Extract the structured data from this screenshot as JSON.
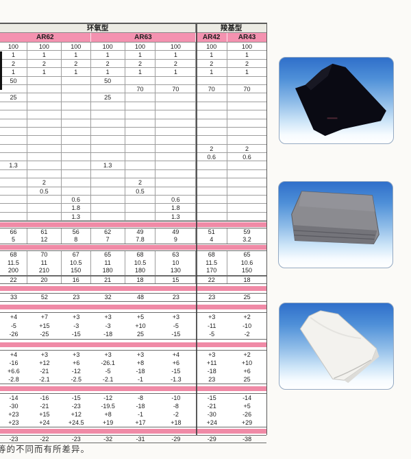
{
  "accent": {
    "pink_header": "#f492b0",
    "pink_band": "#f08aa6",
    "header_grey": "#ecebe4",
    "photo_blue_top": "#2f6fca"
  },
  "table": {
    "type_headers": [
      "环氧型",
      "羧基型"
    ],
    "grade_headers": [
      "AR62",
      "AR63",
      "AR42",
      "AR43"
    ],
    "sections": [
      {
        "rows": [
          [
            "100",
            "100",
            "100",
            "100",
            "100",
            "100",
            "100",
            "100"
          ],
          [
            "1",
            "1",
            "1",
            "1",
            "1",
            "1",
            "1",
            "1"
          ],
          [
            "2",
            "2",
            "2",
            "2",
            "2",
            "2",
            "2",
            "2"
          ],
          [
            "1",
            "1",
            "1",
            "1",
            "1",
            "1",
            "1",
            "1"
          ],
          [
            "50",
            "",
            "",
            "50",
            "",
            "",
            "",
            ""
          ],
          [
            "",
            "",
            "",
            "",
            "70",
            "70",
            "70",
            "70"
          ],
          [
            "25",
            "",
            "",
            "25",
            "",
            "",
            "",
            ""
          ],
          [
            "",
            "",
            "",
            "",
            "",
            "",
            "",
            ""
          ],
          [
            "",
            "",
            "",
            "",
            "",
            "",
            "",
            ""
          ],
          [
            "",
            "",
            "",
            "",
            "",
            "",
            "",
            ""
          ],
          [
            "",
            "",
            "",
            "",
            "",
            "",
            "",
            ""
          ],
          [
            "",
            "",
            "",
            "",
            "",
            "",
            "",
            ""
          ],
          [
            "",
            "",
            "",
            "",
            "",
            "",
            "2",
            "2"
          ],
          [
            "",
            "",
            "",
            "",
            "",
            "",
            "0.6",
            "0.6"
          ],
          [
            "1.3",
            "",
            "",
            "1.3",
            "",
            "",
            "",
            ""
          ],
          [
            "",
            "",
            "",
            "",
            "",
            "",
            "",
            ""
          ],
          [
            "",
            "2",
            "",
            "",
            "2",
            "",
            "",
            ""
          ],
          [
            "",
            "0.5",
            "",
            "",
            "0.5",
            "",
            "",
            ""
          ],
          [
            "",
            "",
            "0.6",
            "",
            "",
            "0.6",
            "",
            ""
          ],
          [
            "",
            "",
            "1.8",
            "",
            "",
            "1.8",
            "",
            ""
          ],
          [
            "",
            "",
            "1.3",
            "",
            "",
            "1.3",
            "",
            ""
          ]
        ]
      },
      {
        "rows": [
          [
            "66",
            "61",
            "56",
            "62",
            "49",
            "49",
            "51",
            "59"
          ],
          [
            "5",
            "12",
            "8",
            "7",
            "7.8",
            "9",
            "4",
            "3.2"
          ]
        ]
      },
      {
        "rows": [
          [
            "68",
            "70",
            "67",
            "65",
            "68",
            "63",
            "68",
            "65"
          ],
          [
            "11.5",
            "11",
            "10.5",
            "11",
            "10.5",
            "10",
            "11.5",
            "10.6"
          ],
          [
            "200",
            "210",
            "150",
            "180",
            "180",
            "130",
            "170",
            "150"
          ]
        ]
      },
      {
        "rows": [
          [
            "22",
            "20",
            "16",
            "21",
            "18",
            "15",
            "22",
            "18"
          ]
        ]
      },
      {
        "rows": [
          [
            "33",
            "52",
            "23",
            "32",
            "48",
            "23",
            "23",
            "25"
          ]
        ]
      },
      {
        "rows": [
          [
            "+4",
            "+7",
            "+3",
            "+3",
            "+5",
            "+3",
            "+3",
            "+2"
          ],
          [
            "-5",
            "+15",
            "-3",
            "-3",
            "+10",
            "-5",
            "-11",
            "-10"
          ],
          [
            "-26",
            "-25",
            "-15",
            "-18",
            "25",
            "-15",
            "-5",
            "-2"
          ]
        ]
      },
      {
        "rows": [
          [
            "+4",
            "+3",
            "+3",
            "+3",
            "+3",
            "+4",
            "+3",
            "+2"
          ],
          [
            "-16",
            "+12",
            "+6",
            "-26.1",
            "+8",
            "+6",
            "+11",
            "+10"
          ],
          [
            "+6.6",
            "-21",
            "-12",
            "-5",
            "-18",
            "-15",
            "-18",
            "+6"
          ],
          [
            "-2.8",
            "-2.1",
            "-2.5",
            "-2.1",
            "-1",
            "-1.3",
            "23",
            "25"
          ]
        ]
      },
      {
        "rows": [
          [
            "-14",
            "-16",
            "-15",
            "-12",
            "-8",
            "-10",
            "-15",
            "-14"
          ],
          [
            "-30",
            "-21",
            "-23",
            "-19.5",
            "-18",
            "-8",
            "-21",
            "+5"
          ],
          [
            "+23",
            "+15",
            "+12",
            "+8",
            "-1",
            "-2",
            "-30",
            "-26"
          ],
          [
            "+23",
            "+24",
            "+24.5",
            "+19",
            "+17",
            "+18",
            "+24",
            "+29"
          ]
        ]
      },
      {
        "rows": [
          [
            "-23",
            "-22",
            "-23",
            "-32",
            "-31",
            "-29",
            "-29",
            "-38"
          ]
        ]
      }
    ]
  },
  "photos": [
    {
      "alt": "black folded fabric sample on blue gradient background"
    },
    {
      "alt": "grey stacked fabric sheets on blue gradient background"
    },
    {
      "alt": "white folded fabric sample on blue gradient background"
    }
  ],
  "footer": {
    "note": "等的不同而有所差异。"
  }
}
